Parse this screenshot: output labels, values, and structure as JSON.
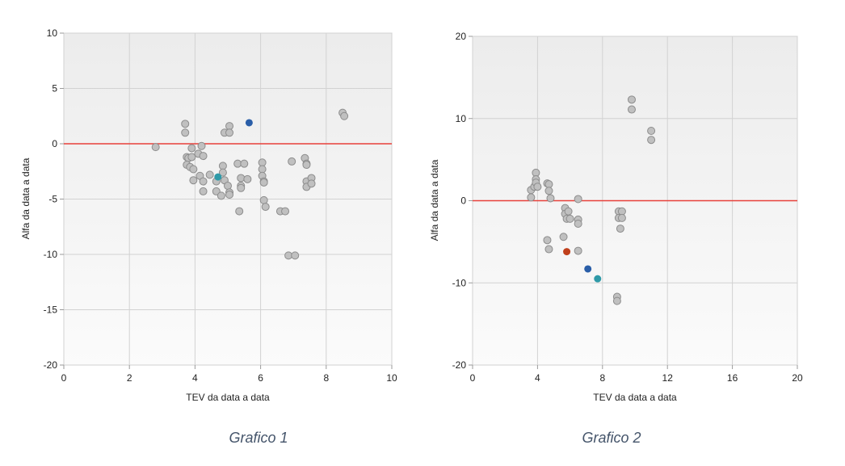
{
  "chart_data": [
    {
      "type": "scatter",
      "caption": "Grafico  1",
      "xlabel": "TEV da data a data",
      "ylabel": "Alfa da data a data",
      "xlim": [
        0,
        10
      ],
      "ylim": [
        -20,
        10
      ],
      "xticks": [
        0,
        2,
        4,
        6,
        8,
        10
      ],
      "yticks": [
        -20,
        -15,
        -10,
        -5,
        0,
        5,
        10
      ],
      "reference_line": {
        "y": 0,
        "color": "#e8413a"
      },
      "grid": true,
      "background": "#f0f0f0",
      "colors": {
        "grey": "#c0c0c0",
        "blue": "#2a5ea8",
        "teal": "#2f9aa8",
        "red": "#c0401c"
      },
      "points": [
        {
          "x": 2.8,
          "y": -0.3,
          "c": "grey"
        },
        {
          "x": 3.7,
          "y": 1.8,
          "c": "grey"
        },
        {
          "x": 3.7,
          "y": 1.0,
          "c": "grey"
        },
        {
          "x": 3.9,
          "y": -0.4,
          "c": "grey"
        },
        {
          "x": 4.2,
          "y": -0.2,
          "c": "grey"
        },
        {
          "x": 3.75,
          "y": -1.2,
          "c": "grey"
        },
        {
          "x": 3.8,
          "y": -1.3,
          "c": "grey"
        },
        {
          "x": 3.9,
          "y": -1.2,
          "c": "grey"
        },
        {
          "x": 4.1,
          "y": -0.9,
          "c": "grey"
        },
        {
          "x": 4.25,
          "y": -1.1,
          "c": "grey"
        },
        {
          "x": 3.75,
          "y": -1.9,
          "c": "grey"
        },
        {
          "x": 3.85,
          "y": -2.1,
          "c": "grey"
        },
        {
          "x": 3.95,
          "y": -2.3,
          "c": "grey"
        },
        {
          "x": 4.15,
          "y": -2.9,
          "c": "grey"
        },
        {
          "x": 3.95,
          "y": -3.3,
          "c": "grey"
        },
        {
          "x": 4.25,
          "y": -3.4,
          "c": "grey"
        },
        {
          "x": 4.25,
          "y": -4.3,
          "c": "grey"
        },
        {
          "x": 4.45,
          "y": -2.8,
          "c": "grey"
        },
        {
          "x": 4.65,
          "y": -3.4,
          "c": "grey"
        },
        {
          "x": 4.65,
          "y": -4.3,
          "c": "grey"
        },
        {
          "x": 4.8,
          "y": -4.7,
          "c": "grey"
        },
        {
          "x": 4.85,
          "y": -2.0,
          "c": "grey"
        },
        {
          "x": 4.85,
          "y": -2.6,
          "c": "grey"
        },
        {
          "x": 4.9,
          "y": -3.3,
          "c": "grey"
        },
        {
          "x": 4.9,
          "y": 1.0,
          "c": "grey"
        },
        {
          "x": 5.05,
          "y": 1.6,
          "c": "grey"
        },
        {
          "x": 5.05,
          "y": 1.0,
          "c": "grey"
        },
        {
          "x": 5.0,
          "y": -3.8,
          "c": "grey"
        },
        {
          "x": 5.05,
          "y": -4.4,
          "c": "grey"
        },
        {
          "x": 5.05,
          "y": -4.6,
          "c": "grey"
        },
        {
          "x": 5.3,
          "y": -1.8,
          "c": "grey"
        },
        {
          "x": 5.5,
          "y": -1.8,
          "c": "grey"
        },
        {
          "x": 5.4,
          "y": -3.1,
          "c": "grey"
        },
        {
          "x": 5.6,
          "y": -3.2,
          "c": "grey"
        },
        {
          "x": 5.4,
          "y": -3.8,
          "c": "grey"
        },
        {
          "x": 5.4,
          "y": -4.0,
          "c": "grey"
        },
        {
          "x": 5.35,
          "y": -6.1,
          "c": "grey"
        },
        {
          "x": 6.05,
          "y": -1.7,
          "c": "grey"
        },
        {
          "x": 6.05,
          "y": -2.3,
          "c": "grey"
        },
        {
          "x": 6.05,
          "y": -2.9,
          "c": "grey"
        },
        {
          "x": 6.1,
          "y": -3.4,
          "c": "grey"
        },
        {
          "x": 6.1,
          "y": -3.5,
          "c": "grey"
        },
        {
          "x": 6.1,
          "y": -5.1,
          "c": "grey"
        },
        {
          "x": 6.15,
          "y": -5.7,
          "c": "grey"
        },
        {
          "x": 6.6,
          "y": -6.1,
          "c": "grey"
        },
        {
          "x": 6.75,
          "y": -6.1,
          "c": "grey"
        },
        {
          "x": 6.95,
          "y": -1.6,
          "c": "grey"
        },
        {
          "x": 6.85,
          "y": -10.1,
          "c": "grey"
        },
        {
          "x": 7.05,
          "y": -10.1,
          "c": "grey"
        },
        {
          "x": 7.35,
          "y": -1.3,
          "c": "grey"
        },
        {
          "x": 7.4,
          "y": -1.8,
          "c": "grey"
        },
        {
          "x": 7.4,
          "y": -1.9,
          "c": "grey"
        },
        {
          "x": 7.4,
          "y": -3.4,
          "c": "grey"
        },
        {
          "x": 7.4,
          "y": -3.9,
          "c": "grey"
        },
        {
          "x": 7.55,
          "y": -3.1,
          "c": "grey"
        },
        {
          "x": 7.55,
          "y": -3.6,
          "c": "grey"
        },
        {
          "x": 8.5,
          "y": 2.8,
          "c": "grey"
        },
        {
          "x": 8.55,
          "y": 2.5,
          "c": "grey"
        },
        {
          "x": 5.65,
          "y": 1.9,
          "c": "blue"
        },
        {
          "x": 4.7,
          "y": -3.0,
          "c": "teal"
        }
      ]
    },
    {
      "type": "scatter",
      "caption": "Grafico  2",
      "xlabel": "TEV da data a data",
      "ylabel": "Alfa da data a data",
      "xlim": [
        0,
        20
      ],
      "ylim": [
        -20,
        20
      ],
      "xticks": [
        0,
        4,
        8,
        12,
        16,
        20
      ],
      "yticks": [
        -20,
        -10,
        0,
        10,
        20
      ],
      "reference_line": {
        "y": 0,
        "color": "#e8413a"
      },
      "grid": true,
      "background": "#f0f0f0",
      "colors": {
        "grey": "#c0c0c0",
        "blue": "#2a5ea8",
        "teal": "#2f9aa8",
        "red": "#c0401c"
      },
      "points": [
        {
          "x": 3.6,
          "y": 0.4,
          "c": "grey"
        },
        {
          "x": 3.6,
          "y": 1.3,
          "c": "grey"
        },
        {
          "x": 3.8,
          "y": 1.7,
          "c": "grey"
        },
        {
          "x": 3.9,
          "y": 3.4,
          "c": "grey"
        },
        {
          "x": 3.9,
          "y": 2.6,
          "c": "grey"
        },
        {
          "x": 3.9,
          "y": 2.2,
          "c": "grey"
        },
        {
          "x": 4.0,
          "y": 1.7,
          "c": "grey"
        },
        {
          "x": 4.6,
          "y": 2.1,
          "c": "grey"
        },
        {
          "x": 4.7,
          "y": 2.0,
          "c": "grey"
        },
        {
          "x": 4.7,
          "y": 1.2,
          "c": "grey"
        },
        {
          "x": 4.8,
          "y": 0.3,
          "c": "grey"
        },
        {
          "x": 4.6,
          "y": -4.8,
          "c": "grey"
        },
        {
          "x": 4.7,
          "y": -5.9,
          "c": "grey"
        },
        {
          "x": 5.6,
          "y": -4.4,
          "c": "grey"
        },
        {
          "x": 5.7,
          "y": -0.9,
          "c": "grey"
        },
        {
          "x": 5.7,
          "y": -1.6,
          "c": "grey"
        },
        {
          "x": 5.8,
          "y": -2.2,
          "c": "grey"
        },
        {
          "x": 5.9,
          "y": -1.3,
          "c": "grey"
        },
        {
          "x": 6.0,
          "y": -2.2,
          "c": "grey"
        },
        {
          "x": 6.5,
          "y": 0.2,
          "c": "grey"
        },
        {
          "x": 6.5,
          "y": -2.3,
          "c": "grey"
        },
        {
          "x": 6.5,
          "y": -2.8,
          "c": "grey"
        },
        {
          "x": 6.5,
          "y": -6.1,
          "c": "grey"
        },
        {
          "x": 9.0,
          "y": -1.3,
          "c": "grey"
        },
        {
          "x": 9.2,
          "y": -1.3,
          "c": "grey"
        },
        {
          "x": 9.0,
          "y": -2.1,
          "c": "grey"
        },
        {
          "x": 9.2,
          "y": -2.1,
          "c": "grey"
        },
        {
          "x": 9.1,
          "y": -3.4,
          "c": "grey"
        },
        {
          "x": 8.9,
          "y": -11.7,
          "c": "grey"
        },
        {
          "x": 8.9,
          "y": -12.2,
          "c": "grey"
        },
        {
          "x": 9.8,
          "y": 12.3,
          "c": "grey"
        },
        {
          "x": 9.8,
          "y": 11.1,
          "c": "grey"
        },
        {
          "x": 11.0,
          "y": 8.5,
          "c": "grey"
        },
        {
          "x": 11.0,
          "y": 7.4,
          "c": "grey"
        },
        {
          "x": 5.8,
          "y": -6.2,
          "c": "red"
        },
        {
          "x": 7.1,
          "y": -8.3,
          "c": "blue"
        },
        {
          "x": 7.7,
          "y": -9.5,
          "c": "teal"
        }
      ]
    }
  ]
}
